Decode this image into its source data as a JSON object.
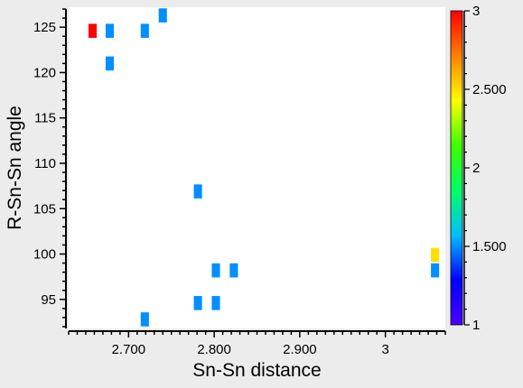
{
  "chart_data": {
    "type": "heatmap",
    "title": "",
    "xlabel": "Sn-Sn distance",
    "ylabel": "R-Sn-Sn angle",
    "xlim": [
      2.63,
      3.07
    ],
    "ylim": [
      91.8,
      127.2
    ],
    "x_ticks": [
      2.7,
      2.8,
      2.9,
      3.0
    ],
    "x_tick_labels": [
      "2.700",
      "2.800",
      "2.900",
      "3"
    ],
    "y_ticks": [
      95,
      100,
      105,
      110,
      115,
      120,
      125
    ],
    "y_tick_labels": [
      "95",
      "100",
      "105",
      "110",
      "115",
      "120",
      "125"
    ],
    "grid": false,
    "bin_width": 0.0096,
    "bin_height": 1.55,
    "colorbar": {
      "min": 1,
      "max": 3,
      "ticks": [
        1,
        1.5,
        2,
        2.5,
        3
      ],
      "tick_labels": [
        "1",
        "1.500",
        "2",
        "2.500",
        "3"
      ],
      "colors": [
        "#4b00ff",
        "#0000ff",
        "#00bfff",
        "#00ff66",
        "#3cff00",
        "#ffff00",
        "#ff8000",
        "#ff0000"
      ]
    },
    "points": [
      {
        "x": 2.658,
        "y": 124.6,
        "value": 3.0
      },
      {
        "x": 2.678,
        "y": 124.6,
        "value": 1.5
      },
      {
        "x": 2.719,
        "y": 124.6,
        "value": 1.5
      },
      {
        "x": 2.74,
        "y": 126.3,
        "value": 1.5
      },
      {
        "x": 2.678,
        "y": 121.0,
        "value": 1.5
      },
      {
        "x": 2.781,
        "y": 106.9,
        "value": 1.5
      },
      {
        "x": 2.802,
        "y": 98.2,
        "value": 1.5
      },
      {
        "x": 2.823,
        "y": 98.2,
        "value": 1.5
      },
      {
        "x": 2.781,
        "y": 94.6,
        "value": 1.5
      },
      {
        "x": 2.802,
        "y": 94.6,
        "value": 1.5
      },
      {
        "x": 2.719,
        "y": 92.8,
        "value": 1.5
      },
      {
        "x": 3.058,
        "y": 99.9,
        "value": 2.5
      },
      {
        "x": 3.058,
        "y": 98.2,
        "value": 1.5
      }
    ]
  }
}
